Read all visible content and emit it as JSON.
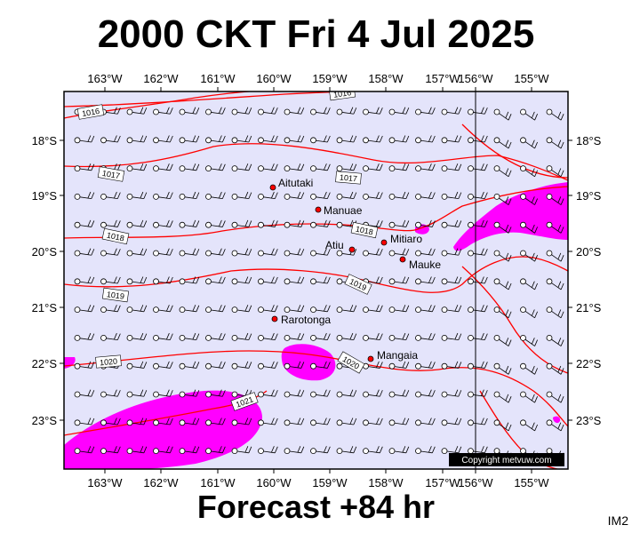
{
  "header": {
    "title": "2000 CKT Fri 4 Jul 2025"
  },
  "footer": {
    "forecast": "Forecast +84 hr",
    "tag": "IM2",
    "copyright": "Copyright metvuw.com"
  },
  "map": {
    "lon_labels": [
      "163°W",
      "162°W",
      "161°W",
      "160°W",
      "159°W",
      "158°W",
      "157°W",
      "156°W",
      "155°W"
    ],
    "lat_labels": [
      "18°S",
      "19°S",
      "20°S",
      "21°S",
      "22°S",
      "23°S"
    ],
    "colors": {
      "ocean": "#e4e4fb",
      "isobar": "#ff0000",
      "rain": "#ff00ff",
      "border": "#000000"
    }
  },
  "places": [
    {
      "name": "Aitutaki"
    },
    {
      "name": "Manuae"
    },
    {
      "name": "Mitiaro"
    },
    {
      "name": "Atiu"
    },
    {
      "name": "Mauke"
    },
    {
      "name": "Rarotonga"
    },
    {
      "name": "Mangaia"
    }
  ],
  "isobars": [
    "1016",
    "1016",
    "1017",
    "1017",
    "1018",
    "1018",
    "1019",
    "1019",
    "1020",
    "1020",
    "1021"
  ]
}
